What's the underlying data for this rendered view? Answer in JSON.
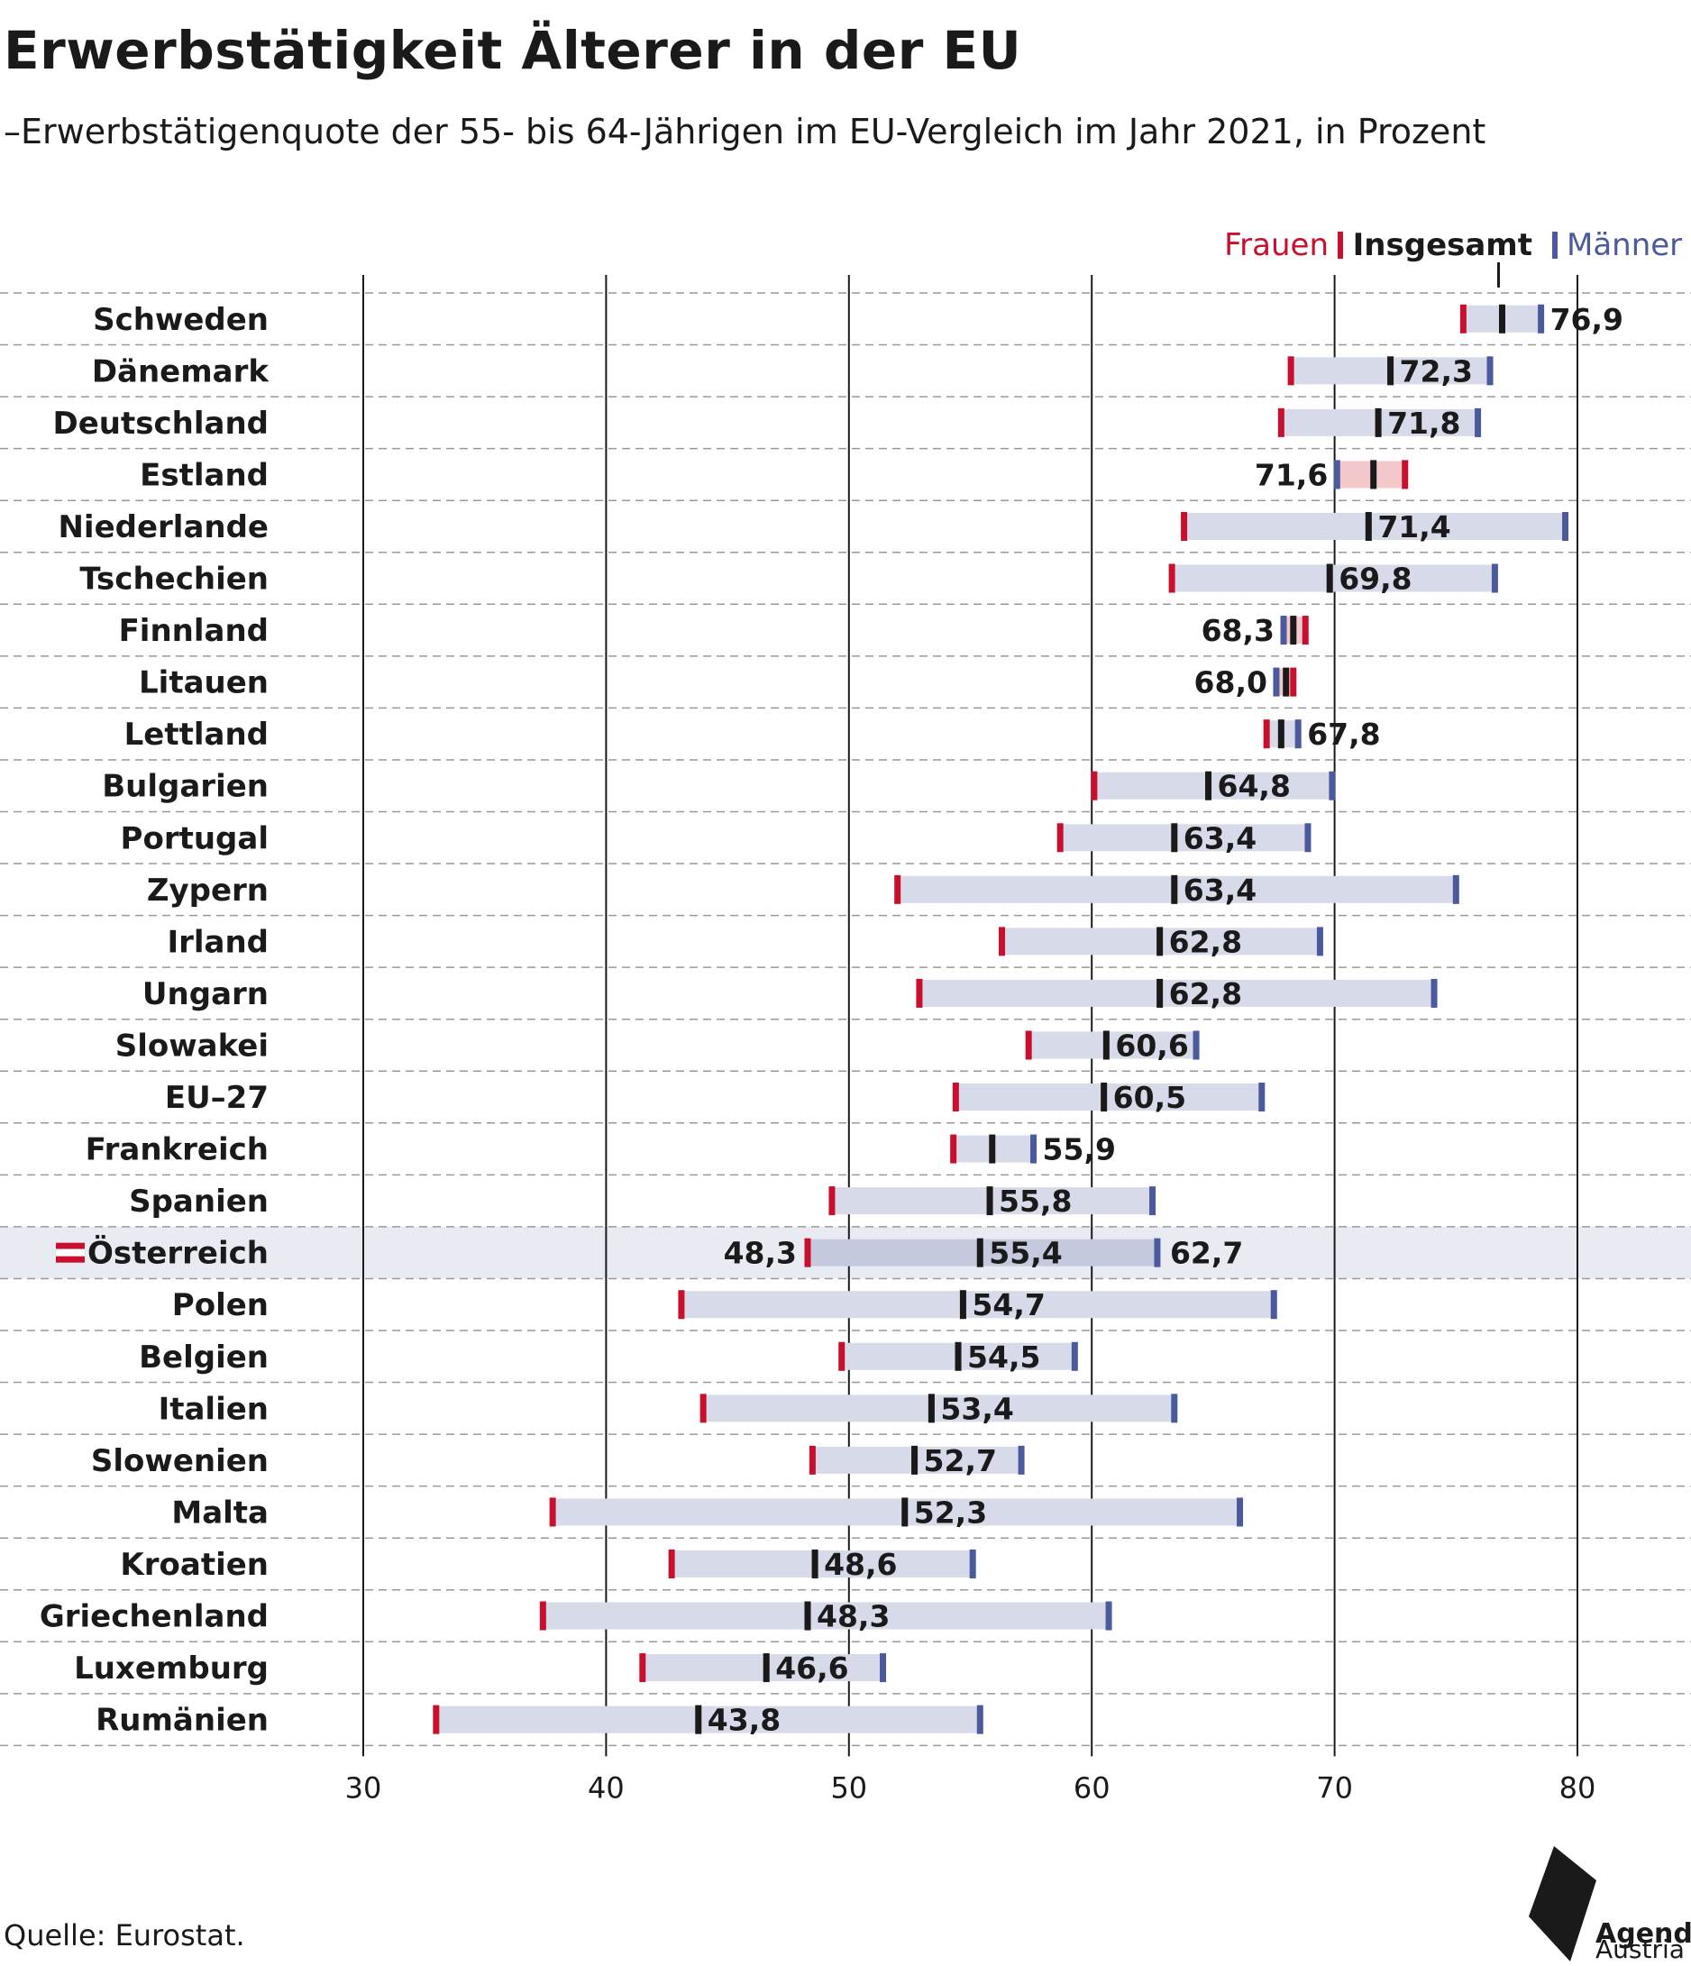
{
  "title": "Erwerbstätigkeit Älterer in der EU",
  "subtitle": "–Erwerbstätigenquote der 55- bis 64-Jährigen im EU-Vergleich im Jahr 2021, in Prozent",
  "source": "Quelle: Eurostat.",
  "logo": {
    "line1": "Agenda",
    "line2": "Austria"
  },
  "colors": {
    "frauen": "#c8102e",
    "insgesamt": "#1a1a1a",
    "maenner": "#4a5a9c",
    "range_bar": "#d7dae8",
    "range_bar_reverse": "#f3c9cc",
    "highlight_row": "#e9ebf3",
    "highlight_bar": "#c5c9dd",
    "grid": "#1a1a1a",
    "row_divider": "#9a9a9a"
  },
  "legend": {
    "frauen": "Frauen",
    "insgesamt": "Insgesamt",
    "maenner": "Männer"
  },
  "chart_data": {
    "type": "dot-range",
    "xlim": [
      30,
      80
    ],
    "xticks": [
      "30",
      "40",
      "50",
      "60",
      "70",
      "80"
    ],
    "grid": true,
    "legend_position": "top-right",
    "series": [
      "Frauen",
      "Insgesamt",
      "Männer"
    ],
    "rows": [
      {
        "country": "Schweden",
        "frauen": 75.3,
        "insgesamt": 76.9,
        "maenner": 78.5,
        "label": "76,9"
      },
      {
        "country": "Dänemark",
        "frauen": 68.2,
        "insgesamt": 72.3,
        "maenner": 76.4,
        "label": "72,3"
      },
      {
        "country": "Deutschland",
        "frauen": 67.8,
        "insgesamt": 71.8,
        "maenner": 75.9,
        "label": "71,8"
      },
      {
        "country": "Estland",
        "frauen": 72.9,
        "insgesamt": 71.6,
        "maenner": 70.1,
        "label": "71,6"
      },
      {
        "country": "Niederlande",
        "frauen": 63.8,
        "insgesamt": 71.4,
        "maenner": 79.5,
        "label": "71,4"
      },
      {
        "country": "Tschechien",
        "frauen": 63.3,
        "insgesamt": 69.8,
        "maenner": 76.6,
        "label": "69,8"
      },
      {
        "country": "Finnland",
        "frauen": 68.8,
        "insgesamt": 68.3,
        "maenner": 67.9,
        "label": "68,3"
      },
      {
        "country": "Litauen",
        "frauen": 68.3,
        "insgesamt": 68.0,
        "maenner": 67.6,
        "label": "68,0"
      },
      {
        "country": "Lettland",
        "frauen": 67.2,
        "insgesamt": 67.8,
        "maenner": 68.5,
        "label": "67,8"
      },
      {
        "country": "Bulgarien",
        "frauen": 60.1,
        "insgesamt": 64.8,
        "maenner": 69.9,
        "label": "64,8"
      },
      {
        "country": "Portugal",
        "frauen": 58.7,
        "insgesamt": 63.4,
        "maenner": 68.9,
        "label": "63,4"
      },
      {
        "country": "Zypern",
        "frauen": 52.0,
        "insgesamt": 63.4,
        "maenner": 75.0,
        "label": "63,4"
      },
      {
        "country": "Irland",
        "frauen": 56.3,
        "insgesamt": 62.8,
        "maenner": 69.4,
        "label": "62,8"
      },
      {
        "country": "Ungarn",
        "frauen": 52.9,
        "insgesamt": 62.8,
        "maenner": 74.1,
        "label": "62,8"
      },
      {
        "country": "Slowakei",
        "frauen": 57.4,
        "insgesamt": 60.6,
        "maenner": 64.3,
        "label": "60,6"
      },
      {
        "country": "EU–27",
        "frauen": 54.4,
        "insgesamt": 60.5,
        "maenner": 67.0,
        "label": "60,5"
      },
      {
        "country": "Frankreich",
        "frauen": 54.3,
        "insgesamt": 55.9,
        "maenner": 57.6,
        "label": "55,9"
      },
      {
        "country": "Spanien",
        "frauen": 49.3,
        "insgesamt": 55.8,
        "maenner": 62.5,
        "label": "55,8"
      },
      {
        "country": "Österreich",
        "frauen": 48.3,
        "insgesamt": 55.4,
        "maenner": 62.7,
        "label": "55,4",
        "highlight": true,
        "frauen_label": "48,3",
        "maenner_label": "62,7"
      },
      {
        "country": "Polen",
        "frauen": 43.1,
        "insgesamt": 54.7,
        "maenner": 67.5,
        "label": "54,7"
      },
      {
        "country": "Belgien",
        "frauen": 49.7,
        "insgesamt": 54.5,
        "maenner": 59.3,
        "label": "54,5"
      },
      {
        "country": "Italien",
        "frauen": 44.0,
        "insgesamt": 53.4,
        "maenner": 63.4,
        "label": "53,4"
      },
      {
        "country": "Slowenien",
        "frauen": 48.5,
        "insgesamt": 52.7,
        "maenner": 57.1,
        "label": "52,7"
      },
      {
        "country": "Malta",
        "frauen": 37.8,
        "insgesamt": 52.3,
        "maenner": 66.1,
        "label": "52,3"
      },
      {
        "country": "Kroatien",
        "frauen": 42.7,
        "insgesamt": 48.6,
        "maenner": 55.1,
        "label": "48,6"
      },
      {
        "country": "Griechenland",
        "frauen": 37.4,
        "insgesamt": 48.3,
        "maenner": 60.7,
        "label": "48,3"
      },
      {
        "country": "Luxemburg",
        "frauen": 41.5,
        "insgesamt": 46.6,
        "maenner": 51.4,
        "label": "46,6"
      },
      {
        "country": "Rumänien",
        "frauen": 33.0,
        "insgesamt": 43.8,
        "maenner": 55.4,
        "label": "43,8"
      }
    ]
  }
}
